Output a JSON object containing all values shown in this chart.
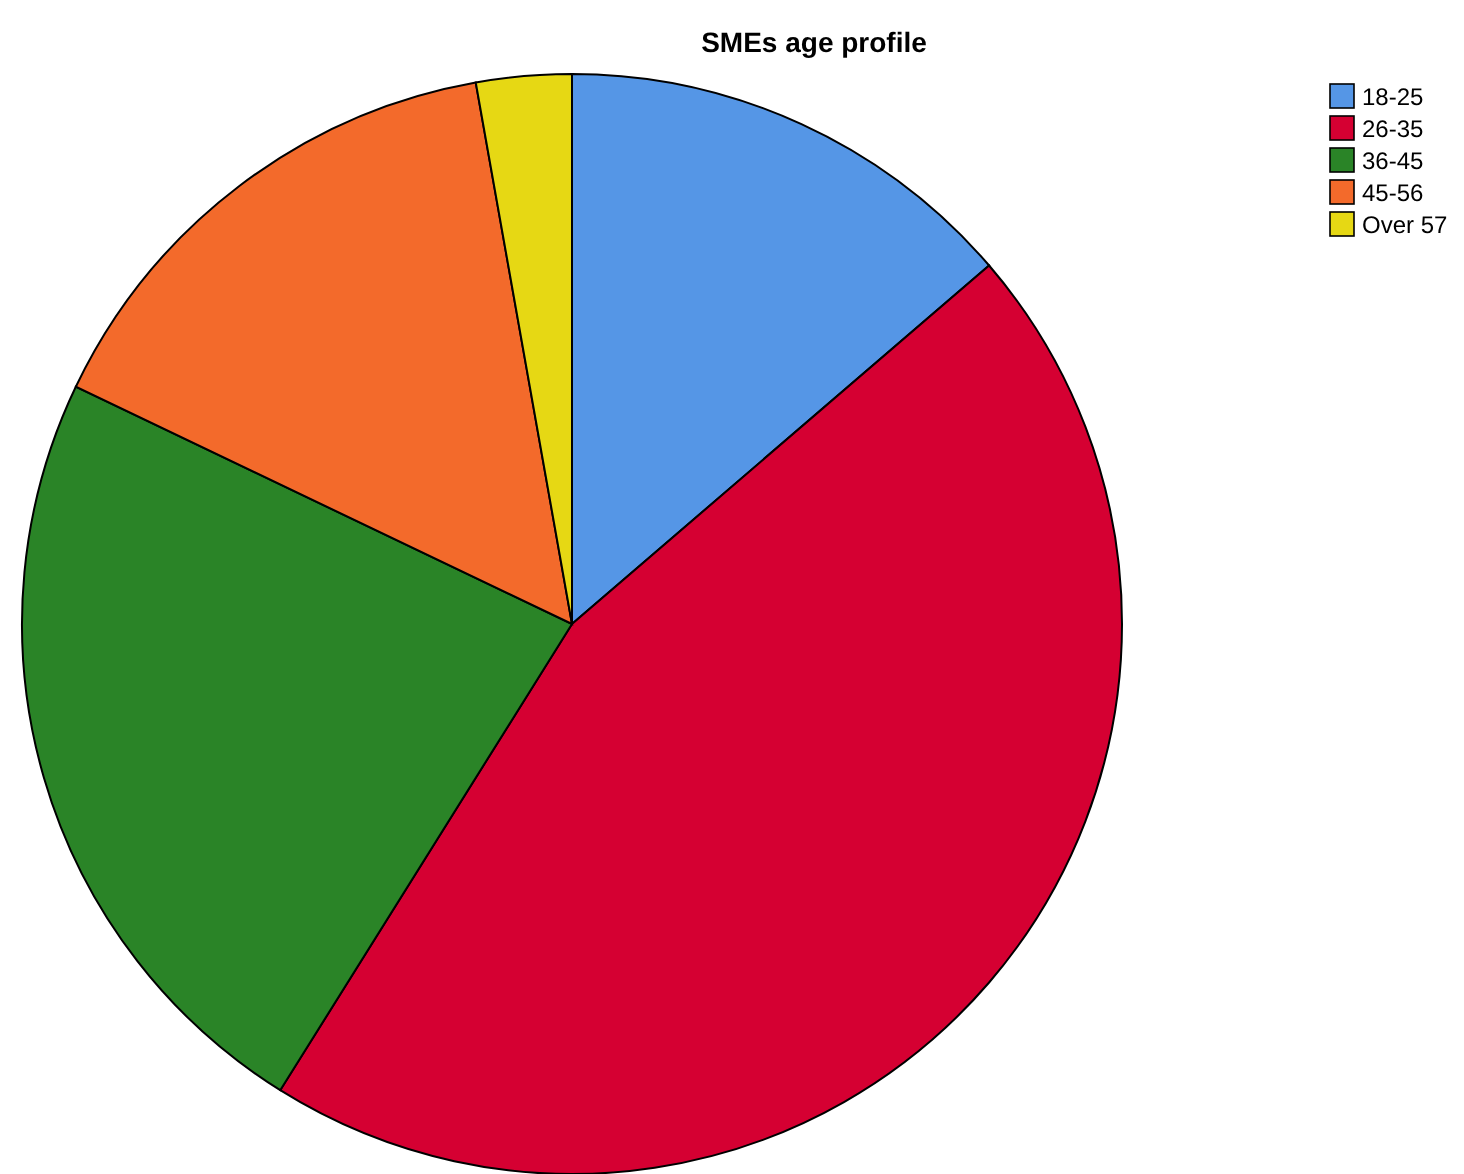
{
  "chart_data": {
    "type": "pie",
    "title": "SMEs age profile",
    "categories": [
      "18-25",
      "26-35",
      "36-45",
      "45-56",
      "Over 57"
    ],
    "values": [
      13.7,
      45.2,
      23.2,
      15.1,
      2.8
    ],
    "colors": [
      "#5596e6",
      "#d50032",
      "#2a8427",
      "#f36a2b",
      "#e6d814"
    ],
    "legend": "top right"
  }
}
